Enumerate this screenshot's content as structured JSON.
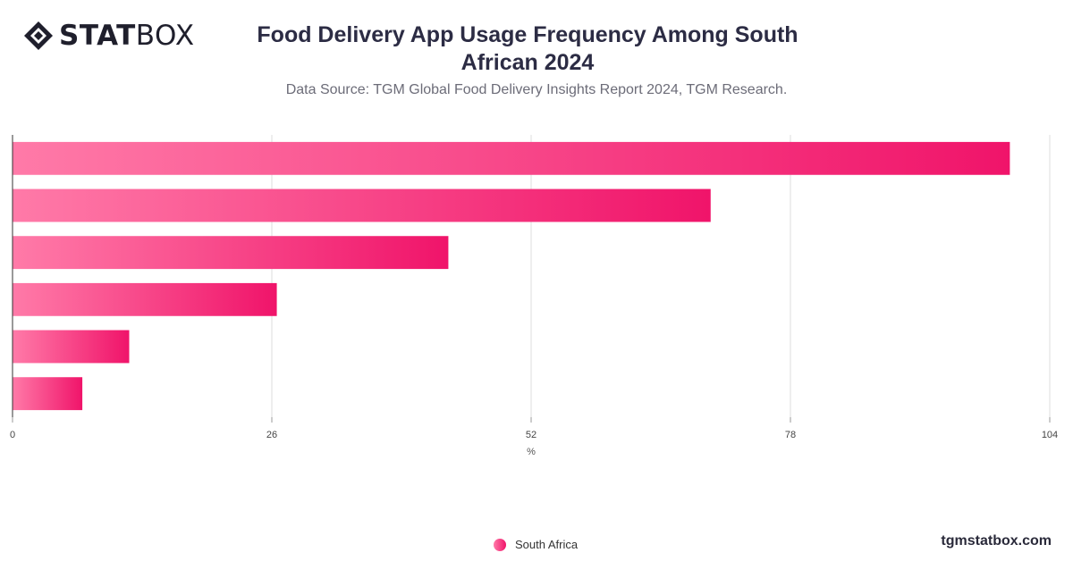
{
  "brand": {
    "logo_bold": "STAT",
    "logo_light": "BOX",
    "site": "tgmstatbox.com"
  },
  "title": "Food Delivery App Usage Frequency Among South African 2024",
  "subtitle": "Data Source: TGM Global Food Delivery Insights Report 2024, TGM Research.",
  "legend": {
    "label": "South Africa"
  },
  "colors": {
    "bar_start": "#ff7aa8",
    "bar_end": "#f0146a",
    "grid": "#dddddd",
    "axis": "#333333"
  },
  "chart_data": {
    "type": "bar",
    "orientation": "horizontal",
    "categories": [
      "",
      "",
      "",
      "",
      "",
      ""
    ],
    "series": [
      {
        "name": "South Africa",
        "values": [
          100,
          70,
          43.7,
          26.5,
          11.7,
          7
        ]
      }
    ],
    "xlabel": "%",
    "ylabel": "",
    "xlim": [
      0,
      104
    ],
    "xticks": [
      0,
      26,
      52,
      78,
      104
    ],
    "grid": true,
    "legend_position": "bottom"
  }
}
